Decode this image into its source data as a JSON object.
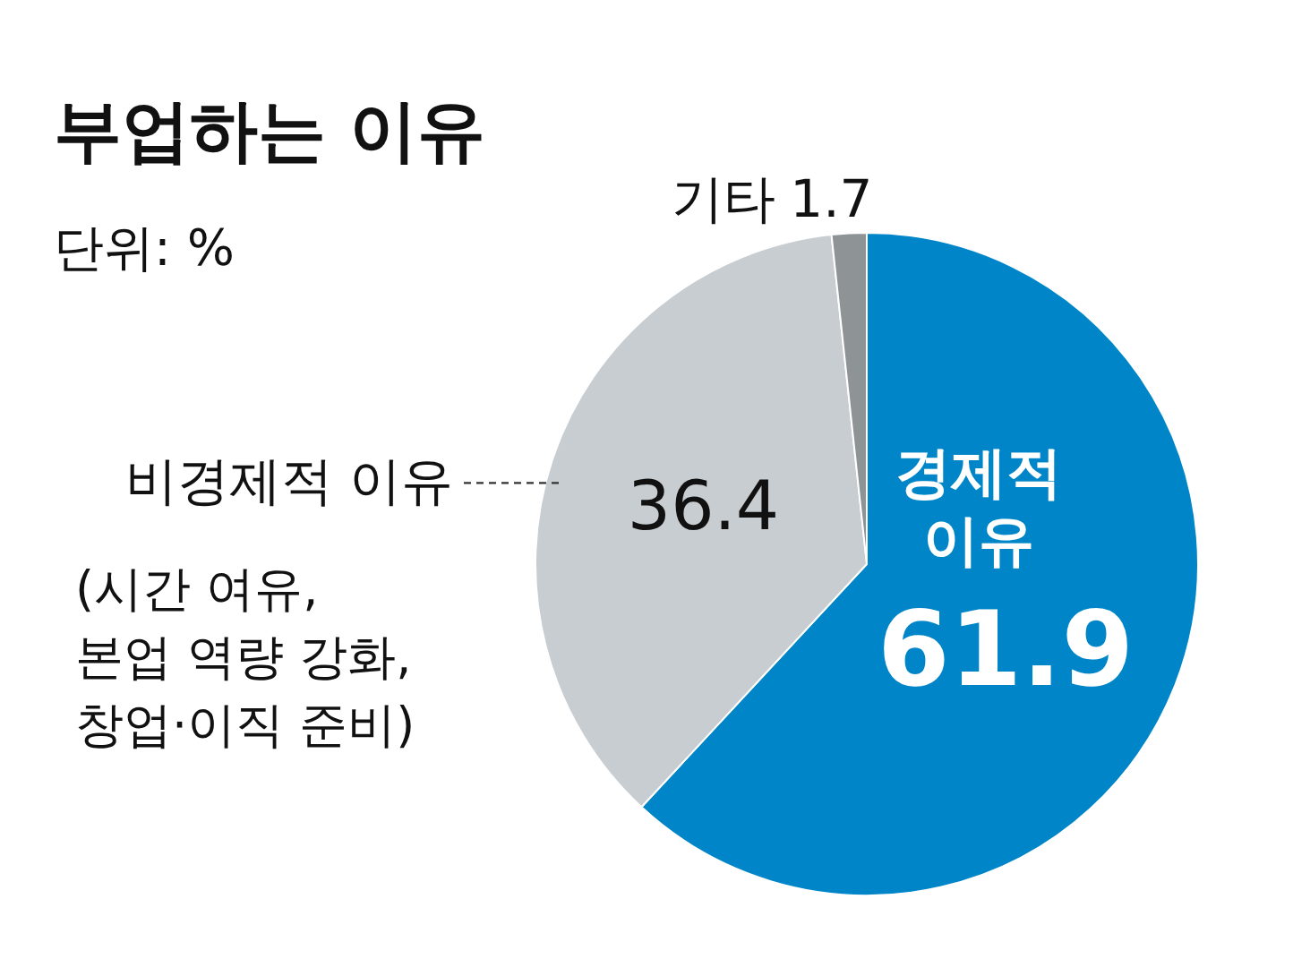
{
  "chart_data": {
    "type": "pie",
    "title": "부업하는 이유",
    "subtitle": "단위: %",
    "categories": [
      "경제적 이유",
      "비경제적 이유",
      "기타"
    ],
    "values": [
      61.9,
      36.4,
      1.7
    ],
    "colors": [
      "#0086c8",
      "#c8cdd1",
      "#8e9396"
    ],
    "data_labels": true,
    "annotations": [
      "(시간 여유,\n본업 역량 강화,\n창업·이직 준비)"
    ]
  }
}
